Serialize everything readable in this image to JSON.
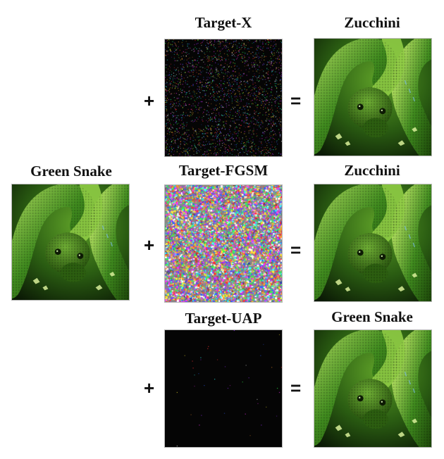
{
  "source": {
    "label": "Green Snake"
  },
  "rows": [
    {
      "perturbation_label": "Target-X",
      "output_label": "Zucchini",
      "plus": "+",
      "equals": "="
    },
    {
      "perturbation_label": "Target-FGSM",
      "output_label": "Zucchini",
      "plus": "+",
      "equals": "="
    },
    {
      "perturbation_label": "Target-UAP",
      "output_label": "Green Snake",
      "plus": "+",
      "equals": "="
    }
  ],
  "colors": {
    "snake_green": "#3f8a1e",
    "snake_light": "#a8d85a",
    "background_dark": "#0b1a05",
    "perturbation_bg": "#050505"
  }
}
